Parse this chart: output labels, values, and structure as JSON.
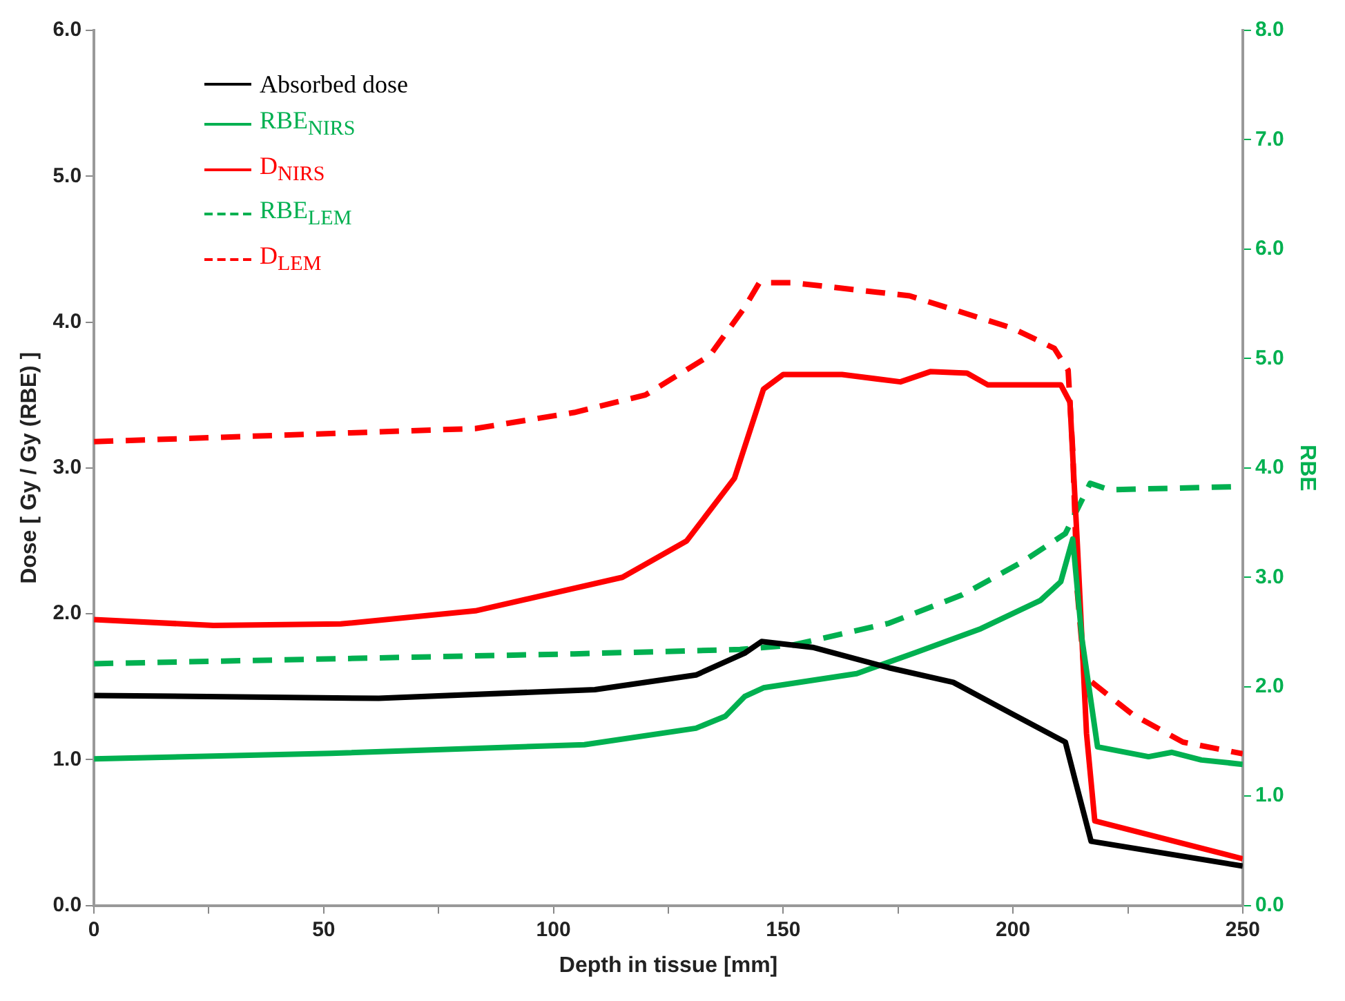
{
  "chart_data": {
    "type": "line",
    "xlabel": "Depth in tissue [mm]",
    "ylabel": "Dose [ Gy / Gy (RBE) ]",
    "y2label": "RBE",
    "xlim": [
      0,
      250
    ],
    "xticks": [
      0,
      {
        "value": 25,
        "label": null
      },
      50,
      {
        "value": 75,
        "label": null
      },
      100,
      {
        "value": 125,
        "label": null
      },
      150,
      {
        "value": 175,
        "label": null
      },
      200,
      {
        "value": 225,
        "label": null
      },
      250
    ],
    "ylim": [
      0,
      6
    ],
    "yticks": [
      {
        "value": 0,
        "label": "0.0"
      },
      {
        "value": 1,
        "label": "1.0"
      },
      {
        "value": 2,
        "label": "2.0"
      },
      {
        "value": 3,
        "label": "3.0"
      },
      {
        "value": 4,
        "label": "4.0"
      },
      {
        "value": 5,
        "label": "5.0"
      },
      {
        "value": 6,
        "label": "6.0"
      }
    ],
    "y2lim": [
      0,
      8
    ],
    "y2ticks": [
      {
        "value": 0,
        "label": "0.0"
      },
      {
        "value": 1,
        "label": "1.0"
      },
      {
        "value": 2,
        "label": "2.0"
      },
      {
        "value": 3,
        "label": "3.0"
      },
      {
        "value": 4,
        "label": "4.0"
      },
      {
        "value": 5,
        "label": "5.0"
      },
      {
        "value": 6,
        "label": "6.0"
      },
      {
        "value": 7,
        "label": "7.0"
      },
      {
        "value": 8,
        "label": "8.0"
      }
    ],
    "grid": false,
    "legend": "top left",
    "marker": "none",
    "series": [
      {
        "name": "Absorbed dose",
        "color": "#000000",
        "line_style": "solid",
        "x": [
          0,
          62,
          109,
          131,
          141.6,
          145.3,
          156.4,
          173,
          187,
          200,
          211.4,
          213.6,
          217,
          250
        ],
        "values": [
          1.44,
          1.42,
          1.48,
          1.58,
          1.73,
          1.81,
          1.77,
          1.63,
          1.53,
          1.31,
          1.12,
          0.85,
          0.44,
          0.27
        ]
      },
      {
        "name": "RBE$_{NIRS}$",
        "color": "#00b050",
        "line_style": "solid",
        "axis": "y2",
        "x": [
          0,
          51.6,
          106.7,
          131,
          137.4,
          141.6,
          145.7,
          166,
          178.7,
          193,
          206,
          210.4,
          213,
          215,
          218.4,
          229.5,
          234.6,
          241,
          250
        ],
        "values": [
          1.34,
          1.39,
          1.47,
          1.62,
          1.73,
          1.91,
          1.99,
          2.12,
          2.31,
          2.53,
          2.79,
          2.96,
          3.35,
          2.44,
          1.45,
          1.36,
          1.4,
          1.33,
          1.29
        ]
      },
      {
        "name": "D$_{NIRS}$",
        "color": "#ff0000",
        "line_style": "solid",
        "x": [
          0,
          26,
          53.7,
          83,
          115,
          129,
          139.4,
          145.7,
          150,
          162.8,
          175.5,
          182,
          190,
          194.5,
          210.4,
          212.4,
          214,
          216,
          217.8,
          250
        ],
        "values": [
          1.96,
          1.92,
          1.93,
          2.02,
          2.25,
          2.5,
          2.93,
          3.54,
          3.64,
          3.64,
          3.59,
          3.66,
          3.65,
          3.57,
          3.57,
          3.45,
          2.48,
          1.18,
          0.58,
          0.32
        ]
      },
      {
        "name": "RBE$_{LEM}$",
        "color": "#00b050",
        "line_style": "dashed",
        "axis": "y2",
        "x": [
          0,
          104.5,
          140.6,
          152,
          173,
          189,
          202,
          211.4,
          216.8,
          221,
          250
        ],
        "values": [
          2.21,
          2.3,
          2.34,
          2.38,
          2.58,
          2.84,
          3.14,
          3.4,
          3.86,
          3.8,
          3.83
        ]
      },
      {
        "name": "D$_{LEM}$",
        "color": "#ff0000",
        "line_style": "dashed",
        "x": [
          0,
          83,
          104.5,
          120,
          134,
          141.6,
          144.8,
          152,
          177.5,
          199.7,
          209,
          212,
          213,
          214,
          215.6,
          226,
          237,
          250
        ],
        "values": [
          3.18,
          3.27,
          3.38,
          3.5,
          3.77,
          4.1,
          4.27,
          4.27,
          4.18,
          3.96,
          3.82,
          3.67,
          3.12,
          2.15,
          1.57,
          1.31,
          1.12,
          1.04
        ]
      }
    ]
  }
}
